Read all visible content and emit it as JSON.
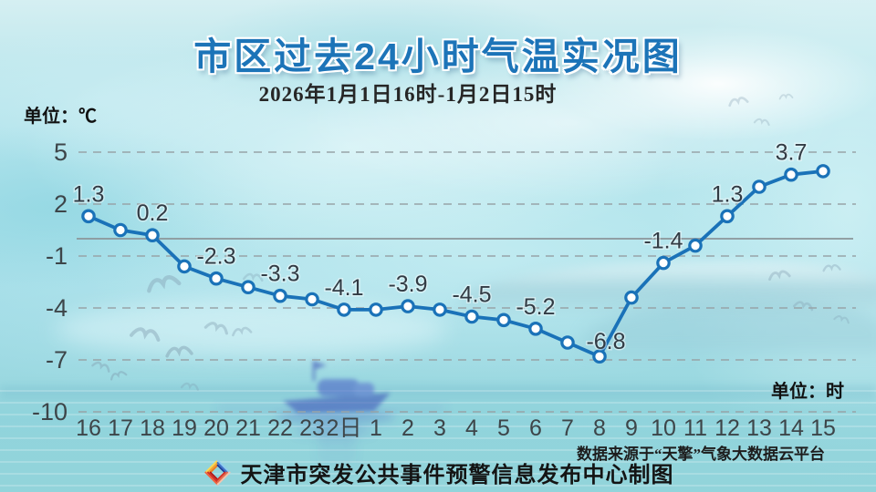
{
  "header": {
    "title": "市区过去24小时气温实况图",
    "subtitle": "2026年1月1日16时-1月2日15时"
  },
  "axes": {
    "y_unit": "单位：℃",
    "x_unit": "单位：时"
  },
  "footer": {
    "source": "数据来源于“天擎”气象大数据云平台",
    "credit": "天津市突发公共事件预警信息发布中心制图",
    "logo": "pinwheel-diamond-logo"
  },
  "colors": {
    "title_blue": "#1c74b8",
    "line_blue": "#1a72b8",
    "marker_fill": "#ffffff",
    "grid_gray": "#98a4a8",
    "zero_gray": "#8d989c",
    "label_text": "#323b44",
    "axis_text": "#3d4549"
  },
  "chart_data": {
    "type": "line",
    "title": "市区过去24小时气温实况图",
    "subtitle": "2026年1月1日16时-1月2日15时",
    "x_unit": "时",
    "y_unit": "℃",
    "ylim": [
      -10,
      5
    ],
    "yticks": [
      5,
      2,
      -1,
      -4,
      -7,
      -10
    ],
    "grid": "horizontal-dashed",
    "zero_line": true,
    "legend": "none",
    "categories": [
      "16",
      "17",
      "18",
      "19",
      "20",
      "21",
      "22",
      "23",
      "2日",
      "1",
      "2",
      "3",
      "4",
      "5",
      "6",
      "7",
      "8",
      "9",
      "10",
      "11",
      "12",
      "13",
      "14",
      "15"
    ],
    "values": [
      1.3,
      0.5,
      0.2,
      -1.6,
      -2.3,
      -2.8,
      -3.3,
      -3.5,
      -4.1,
      -4.1,
      -3.9,
      -4.1,
      -4.5,
      -4.7,
      -5.2,
      -6.0,
      -6.8,
      -3.4,
      -1.4,
      -0.4,
      1.3,
      3.0,
      3.7,
      3.9
    ],
    "data_labels": [
      {
        "i": 0,
        "text": "1.3"
      },
      {
        "i": 2,
        "text": "0.2"
      },
      {
        "i": 4,
        "text": "-2.3"
      },
      {
        "i": 6,
        "text": "-3.3"
      },
      {
        "i": 8,
        "text": "-4.1"
      },
      {
        "i": 10,
        "text": "-3.9"
      },
      {
        "i": 12,
        "text": "-4.5"
      },
      {
        "i": 14,
        "text": "-5.2"
      },
      {
        "i": 16,
        "text": "-6.8"
      },
      {
        "i": 18,
        "text": "-1.4"
      },
      {
        "i": 20,
        "text": "1.3"
      },
      {
        "i": 22,
        "text": "3.7"
      }
    ]
  }
}
